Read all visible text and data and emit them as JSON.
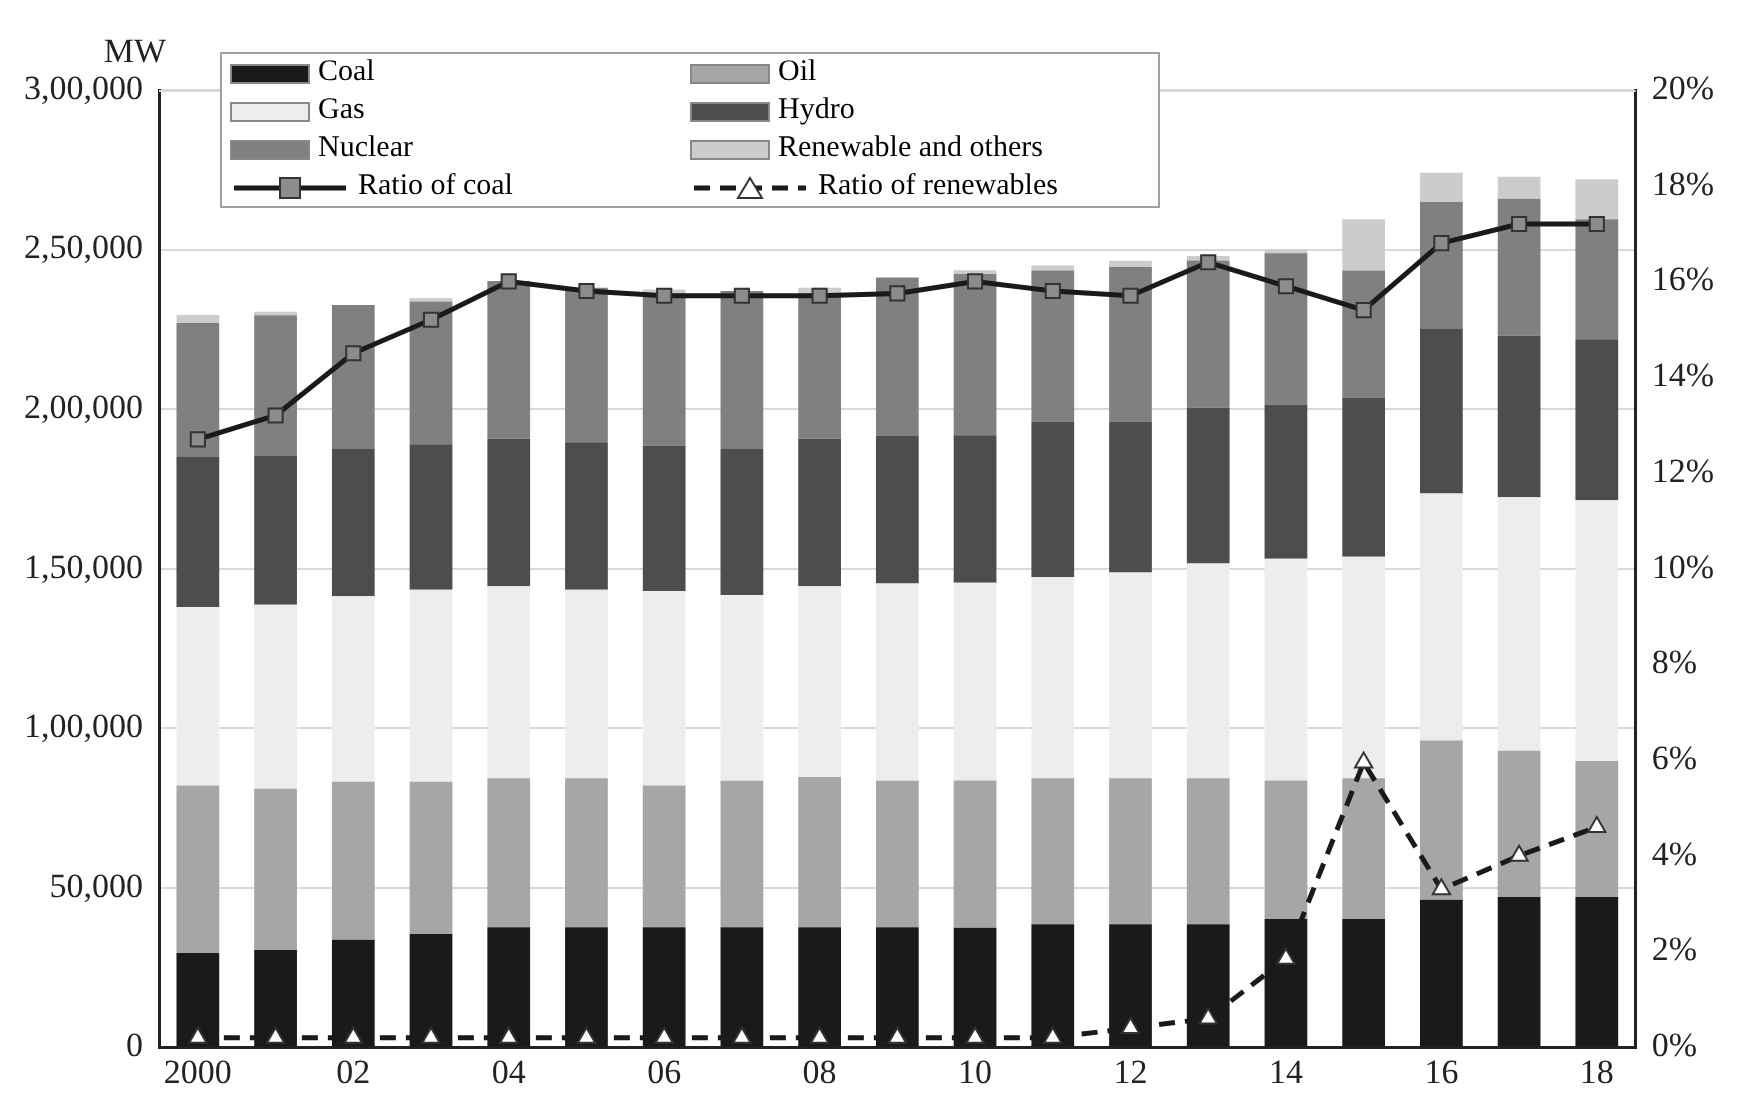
{
  "chart_data": {
    "type": "bar",
    "stacked": true,
    "ylabel": "MW",
    "categories": [
      "2000",
      null,
      "02",
      null,
      "04",
      null,
      "06",
      null,
      "08",
      null,
      "10",
      null,
      "12",
      null,
      "14",
      null,
      "16",
      null,
      "18"
    ],
    "series": [
      {
        "name": "Coal",
        "color": "#1a1a1a",
        "values": [
          29500,
          30500,
          33700,
          35500,
          37600,
          37600,
          37600,
          37600,
          37600,
          37600,
          37400,
          38500,
          38500,
          38500,
          40200,
          40200,
          46200,
          47100,
          47100
        ]
      },
      {
        "name": "Oil",
        "color": "#a6a6a6",
        "values": [
          52500,
          50500,
          49500,
          47700,
          46700,
          46700,
          44400,
          45900,
          47100,
          45900,
          46200,
          45800,
          45800,
          45800,
          43400,
          44100,
          49900,
          45800,
          42600
        ]
      },
      {
        "name": "Gas",
        "color": "#ededed",
        "values": [
          56000,
          57700,
          58100,
          60200,
          60200,
          59100,
          61000,
          58200,
          59800,
          61800,
          62000,
          63000,
          64500,
          67300,
          69500,
          69400,
          77400,
          79500,
          81700
        ]
      },
      {
        "name": "Hydro",
        "color": "#4d4d4d",
        "values": [
          47000,
          46600,
          46200,
          45600,
          46200,
          46200,
          45500,
          45800,
          46200,
          46400,
          46200,
          48800,
          47300,
          48800,
          48300,
          49900,
          51600,
          50600,
          50500
        ]
      },
      {
        "name": "Nuclear",
        "color": "#808080",
        "values": [
          42000,
          44100,
          45100,
          44700,
          49400,
          48400,
          47800,
          49500,
          45600,
          49500,
          50500,
          47300,
          48400,
          46200,
          47400,
          39800,
          39800,
          42900,
          37600
        ]
      },
      {
        "name": "Renewable and others",
        "color": "#cccccc",
        "values": [
          2500,
          1100,
          null,
          1100,
          null,
          null,
          1200,
          null,
          1700,
          null,
          1200,
          1600,
          2000,
          1400,
          1200,
          16100,
          9200,
          6900,
          12500
        ]
      },
      {
        "name": "Ratio of coal",
        "type": "line",
        "axis": "y2",
        "color": "#1a1a1a",
        "marker": "square",
        "line_style": "solid",
        "values": [
          12.7,
          13.2,
          14.5,
          15.2,
          16.0,
          15.8,
          15.7,
          15.7,
          15.7,
          15.75,
          16.0,
          15.8,
          15.7,
          16.4,
          15.9,
          15.4,
          16.8,
          17.2,
          17.2
        ]
      },
      {
        "name": "Ratio of renewables",
        "type": "line",
        "axis": "y2",
        "color": "#1a1a1a",
        "marker": "triangle",
        "line_style": "dashed",
        "values": [
          0.2,
          0.2,
          0.2,
          0.2,
          0.2,
          0.2,
          0.2,
          0.2,
          0.2,
          0.2,
          0.2,
          0.2,
          0.4,
          0.6,
          1.85,
          5.95,
          3.3,
          4.0,
          4.6
        ]
      }
    ],
    "ylim": [
      0,
      300000
    ],
    "yticks": [
      {
        "value": 0,
        "label": "0"
      },
      {
        "value": 50000,
        "label": "50,000"
      },
      {
        "value": 100000,
        "label": "1,00,000"
      },
      {
        "value": 150000,
        "label": "1,50,000"
      },
      {
        "value": 200000,
        "label": "2,00,000"
      },
      {
        "value": 250000,
        "label": "2,50,000"
      },
      {
        "value": 300000,
        "label": "3,00,000"
      }
    ],
    "y2lim": [
      0,
      20
    ],
    "y2ticks": [
      {
        "value": 0,
        "label": "0%"
      },
      {
        "value": 2,
        "label": "2%"
      },
      {
        "value": 4,
        "label": "4%"
      },
      {
        "value": 6,
        "label": "6%"
      },
      {
        "value": 8,
        "label": "8%"
      },
      {
        "value": 10,
        "label": "10%"
      },
      {
        "value": 12,
        "label": "12%"
      },
      {
        "value": 14,
        "label": "14%"
      },
      {
        "value": 16,
        "label": "16%"
      },
      {
        "value": 18,
        "label": "18%"
      },
      {
        "value": 20,
        "label": "20%"
      }
    ],
    "grid": "y",
    "legend": "top left"
  }
}
